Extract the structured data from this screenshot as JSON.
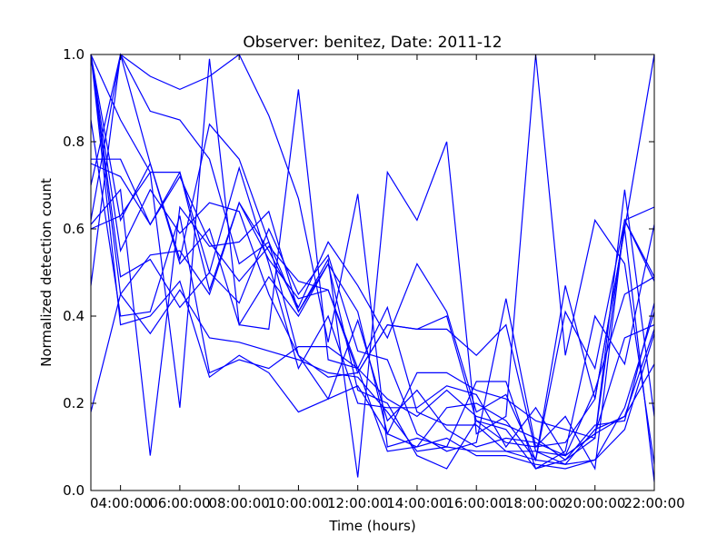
{
  "chart_data": {
    "type": "line",
    "title": "Observer: benitez, Date: 2011-12",
    "xlabel": "Time (hours)",
    "ylabel": "Normalized detection count",
    "x_hours": [
      3,
      4,
      5,
      6,
      7,
      8,
      9,
      10,
      11,
      12,
      13,
      14,
      15,
      16,
      17,
      18,
      19,
      20,
      21,
      22
    ],
    "xlim": [
      3,
      22
    ],
    "ylim": [
      0.0,
      1.0
    ],
    "xticks": [
      4,
      6,
      8,
      10,
      12,
      14,
      16,
      18,
      20,
      22
    ],
    "xtick_labels": [
      "04:00:00",
      "06:00:00",
      "08:00:00",
      "10:00:00",
      "12:00:00",
      "14:00:00",
      "16:00:00",
      "18:00:00",
      "20:00:00",
      "22:00:00"
    ],
    "yticks": [
      0.0,
      0.2,
      0.4,
      0.6,
      0.8,
      1.0
    ],
    "ytick_labels": [
      "0.0",
      "0.2",
      "0.4",
      "0.6",
      "0.8",
      "1.0"
    ],
    "grid": false,
    "line_color": "#0000ff",
    "series": [
      {
        "values": [
          1.0,
          0.45,
          0.54,
          0.55,
          0.45,
          0.66,
          0.55,
          0.42,
          0.57,
          0.47,
          0.35,
          0.52,
          0.41,
          0.18,
          0.22,
          0.07,
          0.41,
          0.28,
          0.62,
          0.65
        ]
      },
      {
        "values": [
          0.18,
          0.45,
          0.36,
          0.46,
          0.35,
          0.34,
          0.32,
          0.3,
          0.27,
          0.26,
          0.18,
          0.09,
          0.1,
          0.09,
          0.09,
          0.07,
          0.47,
          0.21,
          0.6,
          1.0
        ]
      },
      {
        "values": [
          0.62,
          1.0,
          0.87,
          0.85,
          0.76,
          0.52,
          0.57,
          0.41,
          0.53,
          0.03,
          0.73,
          0.62,
          0.8,
          0.13,
          0.17,
          1.0,
          0.31,
          0.62,
          0.52,
          0.06
        ]
      },
      {
        "values": [
          1.0,
          0.85,
          0.73,
          0.19,
          0.99,
          0.38,
          0.37,
          0.92,
          0.3,
          0.28,
          0.21,
          0.17,
          0.23,
          0.17,
          0.15,
          0.12,
          0.07,
          0.15,
          0.16,
          0.43
        ]
      },
      {
        "values": [
          0.7,
          1.0,
          0.95,
          0.92,
          0.95,
          1.0,
          0.86,
          0.67,
          0.34,
          0.68,
          0.1,
          0.12,
          0.1,
          0.25,
          0.25,
          0.05,
          0.09,
          0.4,
          0.29,
          0.61
        ]
      },
      {
        "values": [
          0.47,
          1.0,
          0.75,
          0.53,
          0.84,
          0.76,
          0.57,
          0.31,
          0.21,
          0.39,
          0.16,
          0.23,
          0.14,
          0.1,
          0.12,
          0.11,
          0.08,
          0.13,
          0.35,
          0.38
        ]
      },
      {
        "values": [
          1.0,
          0.62,
          0.75,
          0.52,
          0.6,
          0.38,
          0.49,
          0.4,
          0.52,
          0.23,
          0.2,
          0.08,
          0.05,
          0.16,
          0.11,
          0.1,
          0.17,
          0.05,
          0.62,
          0.49
        ]
      },
      {
        "values": [
          0.75,
          0.72,
          0.61,
          0.73,
          0.46,
          0.66,
          0.53,
          0.44,
          0.46,
          0.27,
          0.38,
          0.37,
          0.4,
          0.16,
          0.14,
          0.05,
          0.07,
          0.12,
          0.69,
          0.17
        ]
      },
      {
        "values": [
          0.61,
          0.69,
          0.08,
          0.65,
          0.56,
          0.57,
          0.64,
          0.41,
          0.52,
          0.41,
          0.13,
          0.27,
          0.27,
          0.23,
          0.21,
          0.16,
          0.14,
          0.12,
          0.62,
          0.48
        ]
      },
      {
        "values": [
          0.85,
          0.4,
          0.41,
          0.63,
          0.27,
          0.3,
          0.28,
          0.33,
          0.33,
          0.28,
          0.09,
          0.1,
          0.19,
          0.2,
          0.16,
          0.07,
          0.06,
          0.14,
          0.17,
          0.37
        ]
      },
      {
        "values": [
          1.0,
          0.38,
          0.4,
          0.48,
          0.26,
          0.31,
          0.27,
          0.18,
          0.21,
          0.24,
          0.13,
          0.1,
          0.12,
          0.08,
          0.08,
          0.06,
          0.05,
          0.07,
          0.14,
          0.36
        ]
      },
      {
        "values": [
          1.0,
          0.49,
          0.53,
          0.42,
          0.5,
          0.43,
          0.6,
          0.45,
          0.54,
          0.32,
          0.3,
          0.13,
          0.09,
          0.11,
          0.44,
          0.1,
          0.11,
          0.21,
          0.6,
          0.02
        ]
      },
      {
        "values": [
          0.76,
          0.76,
          0.61,
          0.72,
          0.57,
          0.48,
          0.56,
          0.48,
          0.46,
          0.28,
          0.42,
          0.18,
          0.15,
          0.15,
          0.09,
          0.09,
          0.08,
          0.13,
          0.17,
          0.29
        ]
      },
      {
        "values": [
          1.0,
          0.55,
          0.69,
          0.59,
          0.66,
          0.64,
          0.45,
          0.31,
          0.26,
          0.27,
          0.38,
          0.37,
          0.37,
          0.31,
          0.38,
          0.09,
          0.06,
          0.07,
          0.19,
          0.41
        ]
      },
      {
        "values": [
          0.6,
          0.63,
          0.73,
          0.73,
          0.5,
          0.74,
          0.52,
          0.28,
          0.4,
          0.2,
          0.19,
          0.19,
          0.24,
          0.22,
          0.1,
          0.19,
          0.08,
          0.23,
          0.45,
          0.49
        ]
      }
    ]
  }
}
